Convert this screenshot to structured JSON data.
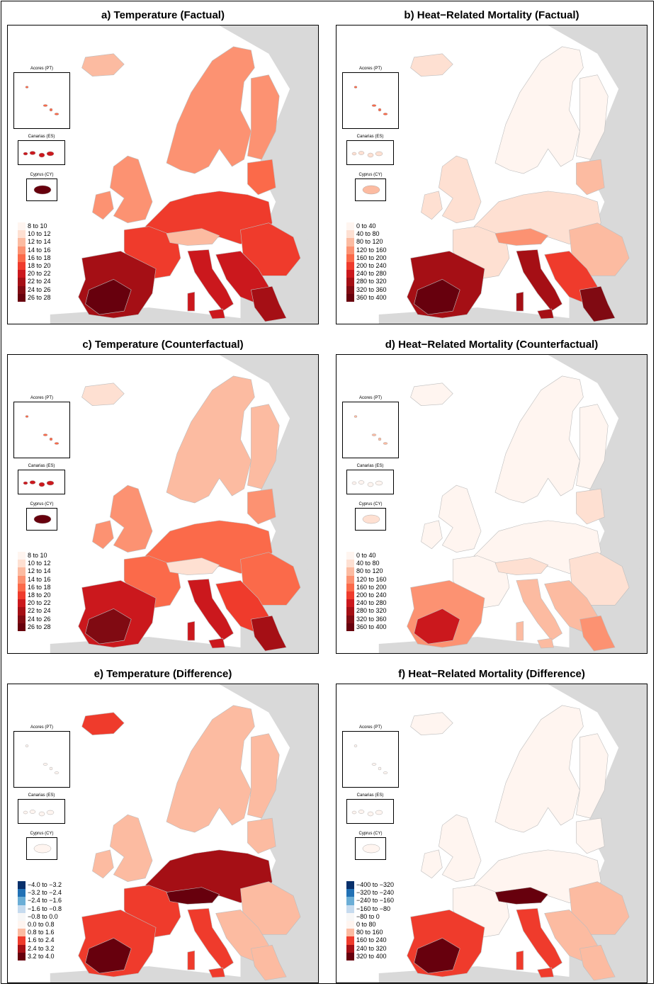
{
  "colors": {
    "land_grey": "#d9d9d9",
    "sea": "#ffffff",
    "reds": [
      "#fff5f0",
      "#fee0d2",
      "#fcbba1",
      "#fc9272",
      "#fb6a4a",
      "#ef3b2c",
      "#cb181d",
      "#a50f15",
      "#800a12",
      "#67000d"
    ],
    "blues": [
      "#08306b",
      "#2171b5",
      "#6baed6",
      "#c6dbef"
    ]
  },
  "insets": {
    "acores": "Acores (PT)",
    "canarias": "Canarias (ES)",
    "cyprus": "Cyprus (CY)"
  },
  "legends": {
    "temperature": [
      "8 to 10",
      "10 to 12",
      "12 to 14",
      "14 to 16",
      "16 to 18",
      "18 to 20",
      "20 to 22",
      "22 to 24",
      "24 to 26",
      "26 to 28"
    ],
    "mortality": [
      "0 to 40",
      "40 to 80",
      "80 to 120",
      "120 to 160",
      "160 to 200",
      "200 to 240",
      "240 to 280",
      "280 to 320",
      "320 to 360",
      "360 to 400"
    ],
    "temp_diff": [
      "−4.0 to −3.2",
      "−3.2 to −2.4",
      "−2.4 to −1.6",
      "−1.6 to −0.8",
      "−0.8 to 0.0",
      "0.0 to 0.8",
      "0.8 to 1.6",
      "1.6 to 2.4",
      "2.4 to 3.2",
      "3.2 to 4.0"
    ],
    "mort_diff": [
      "−400 to −320",
      "−320 to −240",
      "−240 to −160",
      "−160 to −80",
      "−80 to 0",
      "0 to 80",
      "80 to 160",
      "160 to 240",
      "240 to 320",
      "320 to 400"
    ]
  },
  "panels": [
    {
      "id": "a",
      "title": "a) Temperature (Factual)",
      "legend": "temperature",
      "levels": {
        "base": 5,
        "nordic": 3,
        "iceland": 2,
        "britain": 3,
        "iberia": 7,
        "iberia_core": 9,
        "italy": 6,
        "balkans": 6,
        "central": 5,
        "east": 5,
        "greece": 7,
        "alps": 2,
        "baltic": 4,
        "cyprus": 9,
        "canarias": 6,
        "acores": 4
      }
    },
    {
      "id": "b",
      "title": "b) Heat−Related Mortality (Factual)",
      "legend": "mortality",
      "levels": {
        "base": 1,
        "nordic": 0,
        "iceland": 1,
        "britain": 1,
        "iberia": 7,
        "iberia_core": 9,
        "italy": 7,
        "balkans": 5,
        "central": 1,
        "east": 2,
        "greece": 8,
        "alps": 3,
        "baltic": 2,
        "cyprus": 2,
        "canarias": 1,
        "acores": 4
      }
    },
    {
      "id": "c",
      "title": "c) Temperature (Counterfactual)",
      "legend": "temperature",
      "levels": {
        "base": 4,
        "nordic": 2,
        "iceland": 1,
        "britain": 3,
        "iberia": 6,
        "iberia_core": 8,
        "italy": 6,
        "balkans": 5,
        "central": 4,
        "east": 4,
        "greece": 7,
        "alps": 1,
        "baltic": 3,
        "cyprus": 9,
        "canarias": 6,
        "acores": 4
      }
    },
    {
      "id": "d",
      "title": "d) Heat−Related Mortality (Counterfactual)",
      "legend": "mortality",
      "levels": {
        "base": 0,
        "nordic": 0,
        "iceland": 0,
        "britain": 0,
        "iberia": 3,
        "iberia_core": 6,
        "italy": 2,
        "balkans": 2,
        "central": 0,
        "east": 1,
        "greece": 3,
        "alps": 1,
        "baltic": 1,
        "cyprus": 1,
        "canarias": 0,
        "acores": 2
      }
    },
    {
      "id": "e",
      "title": "e) Temperature (Difference)",
      "legend": "temp_diff",
      "levels": {
        "base": 7,
        "nordic": 6,
        "iceland": 7,
        "britain": 6,
        "iberia": 7,
        "iberia_core": 9,
        "italy": 7,
        "balkans": 6,
        "central": 8,
        "east": 6,
        "greece": 6,
        "alps": 9,
        "baltic": 6,
        "cyprus": 5,
        "canarias": 5,
        "acores": 5
      }
    },
    {
      "id": "f",
      "title": "f) Heat−Related Mortality (Difference)",
      "legend": "mort_diff",
      "levels": {
        "base": 5,
        "nordic": 5,
        "iceland": 5,
        "britain": 5,
        "iberia": 7,
        "iberia_core": 9,
        "italy": 7,
        "balkans": 6,
        "central": 5,
        "east": 6,
        "greece": 6,
        "alps": 9,
        "baltic": 5,
        "cyprus": 5,
        "canarias": 5,
        "acores": 5
      }
    }
  ]
}
